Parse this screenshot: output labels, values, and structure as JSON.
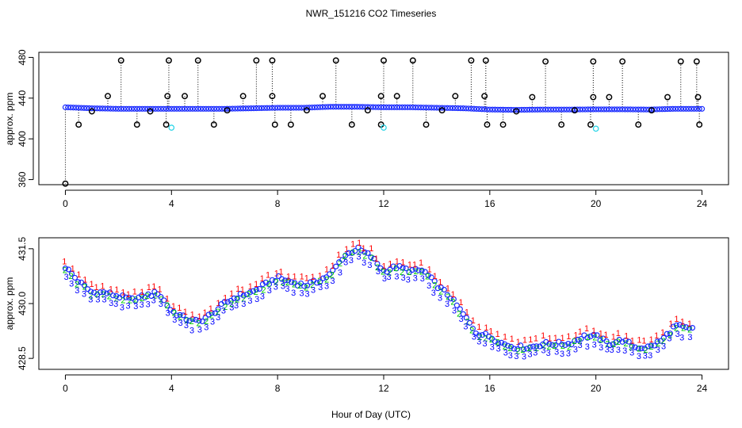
{
  "chart_data": [
    {
      "type": "scatter",
      "title": "NWR_151216  CO2 Timeseries",
      "xlabel": "",
      "ylabel": "approx. ppm",
      "xlim": [
        -1,
        25
      ],
      "ylim": [
        355,
        485
      ],
      "x_ticks": [
        "0",
        "4",
        "8",
        "12",
        "16",
        "20",
        "24"
      ],
      "y_ticks": [
        "360",
        "400",
        "440",
        "480"
      ],
      "colors": {
        "baseline": "#1a2bff",
        "spikes": "#000000",
        "low": "#22d3e6"
      },
      "baseline": {
        "x": [
          0,
          1,
          2,
          3,
          4,
          5,
          6,
          7,
          8,
          9,
          10,
          11,
          12,
          13,
          14,
          15,
          16,
          17,
          18,
          19,
          20,
          21,
          22,
          23,
          24
        ],
        "y": [
          431,
          430,
          429.5,
          429.5,
          429.5,
          429.5,
          429.5,
          430,
          430.5,
          430.5,
          431.5,
          431.5,
          431,
          431,
          430.5,
          430,
          428.8,
          428.5,
          428.8,
          428.8,
          429,
          429,
          428.8,
          429.5,
          429.5
        ]
      },
      "spikes": {
        "x": [
          0.0,
          0.5,
          1.0,
          1.6,
          2.1,
          2.7,
          3.2,
          3.8,
          3.85,
          3.9,
          4.5,
          5.0,
          5.6,
          6.1,
          6.7,
          7.2,
          7.8,
          7.8,
          7.9,
          8.5,
          9.1,
          9.7,
          10.2,
          10.8,
          11.4,
          11.9,
          11.9,
          12.0,
          12.5,
          13.1,
          13.6,
          14.2,
          14.7,
          15.3,
          15.8,
          15.85,
          15.9,
          16.5,
          17.0,
          17.6,
          18.1,
          18.7,
          19.2,
          19.8,
          19.9,
          19.9,
          20.5,
          21.0,
          21.6,
          22.1,
          22.7,
          23.2,
          23.8,
          23.85,
          23.9
        ],
        "y": [
          356,
          414,
          427,
          442,
          477,
          414,
          427,
          414,
          442,
          477,
          442,
          477,
          414,
          428,
          442,
          477,
          442,
          477,
          414,
          414,
          428,
          442,
          477,
          414,
          428,
          414,
          442,
          477,
          442,
          477,
          414,
          428,
          442,
          477,
          442,
          477,
          414,
          414,
          427,
          441,
          476,
          414,
          428,
          414,
          441,
          476,
          441,
          476,
          414,
          428,
          441,
          476,
          476,
          441,
          414
        ]
      },
      "low_points": {
        "x": [
          4.0,
          12.0,
          20.0
        ],
        "y": [
          411,
          411,
          410
        ]
      }
    },
    {
      "type": "scatter",
      "title": "",
      "xlabel": "Hour of Day (UTC)",
      "ylabel": "approx. ppm",
      "xlim": [
        -1,
        25
      ],
      "ylim": [
        428.2,
        431.8
      ],
      "x_ticks": [
        "0",
        "4",
        "8",
        "12",
        "16",
        "20",
        "24"
      ],
      "y_ticks": [
        "428.5",
        "430.0",
        "431.5"
      ],
      "colors": {
        "series_1": "#ff0000",
        "series_2": "#00cc00",
        "series_3": "#0000ff"
      },
      "marker_labels": [
        "1",
        "2",
        "3"
      ],
      "series": {
        "x": [
          0.0,
          0.5,
          1.0,
          1.5,
          2.0,
          2.5,
          3.0,
          3.5,
          4.0,
          4.5,
          5.0,
          5.5,
          6.0,
          6.5,
          7.0,
          7.5,
          8.0,
          8.5,
          9.0,
          9.5,
          10.0,
          10.5,
          11.0,
          11.5,
          12.0,
          12.5,
          13.0,
          13.5,
          14.0,
          14.5,
          15.0,
          15.5,
          16.0,
          16.5,
          17.0,
          17.5,
          18.0,
          18.5,
          19.0,
          19.5,
          20.0,
          20.5,
          21.0,
          21.5,
          22.0,
          22.5,
          23.0,
          23.5
        ],
        "y": [
          431.0,
          430.6,
          430.3,
          430.3,
          430.2,
          430.1,
          430.2,
          430.3,
          429.8,
          429.6,
          429.5,
          429.7,
          430.0,
          430.2,
          430.3,
          430.5,
          430.7,
          430.6,
          430.5,
          430.6,
          430.8,
          431.3,
          431.5,
          431.3,
          430.9,
          431.0,
          430.9,
          430.9,
          430.5,
          430.2,
          429.7,
          429.2,
          429.1,
          428.9,
          428.8,
          428.8,
          428.9,
          428.9,
          428.9,
          429.1,
          429.1,
          428.9,
          429.0,
          428.8,
          428.8,
          429.0,
          429.4,
          429.3
        ]
      }
    }
  ]
}
